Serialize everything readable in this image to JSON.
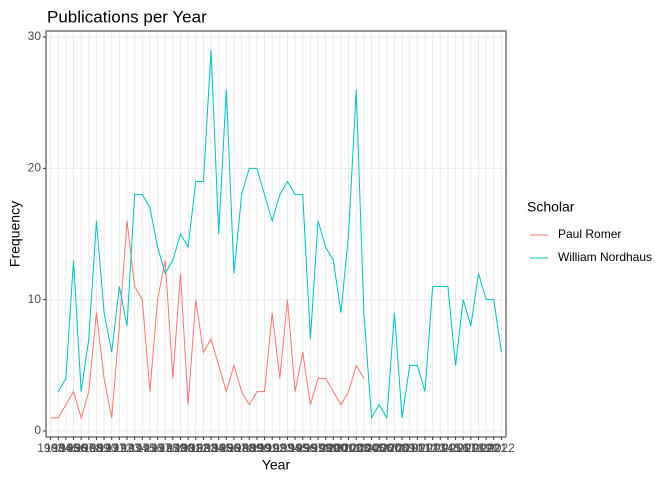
{
  "chart_data": {
    "type": "line",
    "title": "Publications per Year",
    "x_label": "Year",
    "y_label": "Frequency",
    "legend_title": "Scholar",
    "legend": "right",
    "grid": true,
    "categories": [
      "1963",
      "1964",
      "1965",
      "1966",
      "1967",
      "1968",
      "1969",
      "1970",
      "1971",
      "1972",
      "1973",
      "1974",
      "1975",
      "1976",
      "1977",
      "1978",
      "1979",
      "1980",
      "1981",
      "1982",
      "1983",
      "1984",
      "1985",
      "1986",
      "1987",
      "1988",
      "1989",
      "1990",
      "1991",
      "1992",
      "1993",
      "1994",
      "1995",
      "1996",
      "1997",
      "1998",
      "1999",
      "2000",
      "2001",
      "2002",
      "2003",
      "2004",
      "2005",
      "2006",
      "2007",
      "2008",
      "2009",
      "2010",
      "2011",
      "2012",
      "2013",
      "2014",
      "2015",
      "2016",
      "2017",
      "2018",
      "2019",
      "2020",
      "2021",
      "2022"
    ],
    "ylim": [
      0,
      30
    ],
    "yticks": [
      0,
      10,
      20,
      30
    ],
    "series": [
      {
        "name": "Paul Romer",
        "color": "#f8766d",
        "values": [
          1,
          1,
          2,
          3,
          1,
          3,
          9,
          4,
          1,
          8,
          16,
          11,
          10,
          3,
          10,
          13,
          4,
          12,
          2,
          10,
          6,
          7,
          5,
          3,
          5,
          3,
          2,
          3,
          3,
          9,
          4,
          10,
          3,
          6,
          2,
          4,
          4,
          3,
          2,
          3,
          5,
          4,
          null,
          null,
          null,
          null,
          null,
          null,
          null,
          null,
          null,
          null,
          null,
          null,
          null,
          null,
          null,
          null,
          null,
          null
        ]
      },
      {
        "name": "William Nordhaus",
        "color": "#00bfc4",
        "values": [
          null,
          3,
          4,
          13,
          3,
          7,
          16,
          9,
          6,
          11,
          8,
          18,
          18,
          17,
          14,
          12,
          13,
          15,
          14,
          19,
          19,
          29,
          15,
          26,
          12,
          18,
          20,
          20,
          18,
          16,
          18,
          19,
          18,
          18,
          7,
          16,
          14,
          13,
          9,
          15,
          26,
          9,
          1,
          2,
          1,
          9,
          1,
          5,
          5,
          3,
          11,
          11,
          11,
          5,
          10,
          8,
          12,
          10,
          10,
          6
        ]
      }
    ]
  }
}
